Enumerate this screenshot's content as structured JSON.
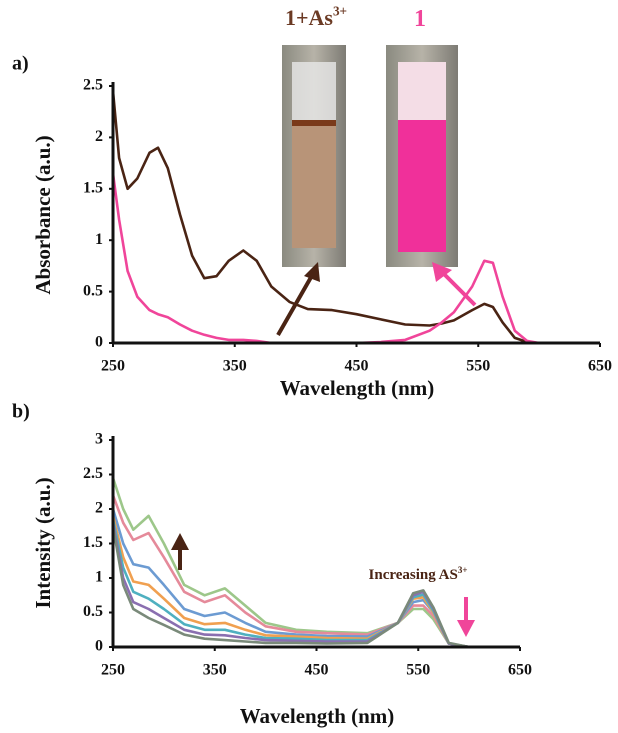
{
  "chart_data": [
    {
      "type": "line",
      "panel": "a)",
      "xlabel": "Wavelength (nm)",
      "ylabel": "Absorbance (a.u.)",
      "annotations": [
        {
          "text": "1+As",
          "sup": "3+",
          "color": "#6b3a24"
        },
        {
          "text": "1",
          "color": "#f0459a"
        }
      ],
      "x": [
        250,
        255,
        262,
        270,
        280,
        287,
        295,
        305,
        315,
        325,
        335,
        345,
        357,
        368,
        380,
        395,
        410,
        430,
        450,
        470,
        490,
        510,
        520,
        530,
        545,
        555,
        562,
        570,
        580,
        590,
        600,
        650
      ],
      "series": [
        {
          "color": "#4a2414",
          "values": [
            2.45,
            1.8,
            1.5,
            1.6,
            1.85,
            1.9,
            1.7,
            1.25,
            0.85,
            0.63,
            0.65,
            0.8,
            0.9,
            0.8,
            0.55,
            0.4,
            0.33,
            0.32,
            0.28,
            0.23,
            0.18,
            0.17,
            0.19,
            0.22,
            0.32,
            0.38,
            0.35,
            0.2,
            0.05,
            0.01,
            0,
            0
          ]
        },
        {
          "color": "#f0459a",
          "values": [
            1.65,
            1.2,
            0.7,
            0.45,
            0.32,
            0.28,
            0.25,
            0.18,
            0.12,
            0.08,
            0.05,
            0.03,
            0.03,
            0.02,
            0,
            0,
            0,
            0,
            0,
            0.01,
            0.03,
            0.12,
            0.2,
            0.3,
            0.55,
            0.8,
            0.78,
            0.45,
            0.12,
            0.02,
            0,
            0
          ]
        }
      ],
      "xlim": [
        250,
        650
      ],
      "xticks": [
        250,
        350,
        450,
        550,
        650
      ],
      "ylim": [
        0,
        2.5
      ],
      "yticks": [
        0,
        0.5,
        1,
        1.5,
        2,
        2.5
      ]
    },
    {
      "type": "line",
      "panel": "b)",
      "xlabel": "Wavelength (nm)",
      "ylabel": "Intensity (a.u.)",
      "annotations": [
        {
          "text": "Increasing AS",
          "sup": "3+",
          "color": "#4a2414"
        }
      ],
      "x": [
        250,
        260,
        270,
        285,
        300,
        320,
        340,
        360,
        380,
        400,
        430,
        460,
        500,
        530,
        545,
        555,
        565,
        580,
        600
      ],
      "series": [
        {
          "color": "#9dc78a",
          "values": [
            2.45,
            2.0,
            1.7,
            1.9,
            1.5,
            0.9,
            0.75,
            0.85,
            0.6,
            0.35,
            0.25,
            0.22,
            0.2,
            0.35,
            0.55,
            0.55,
            0.4,
            0.05,
            0
          ]
        },
        {
          "color": "#e58a9a",
          "values": [
            2.2,
            1.8,
            1.55,
            1.65,
            1.3,
            0.8,
            0.65,
            0.75,
            0.5,
            0.3,
            0.22,
            0.2,
            0.18,
            0.35,
            0.6,
            0.6,
            0.45,
            0.05,
            0
          ]
        },
        {
          "color": "#6c9bd2",
          "values": [
            2.0,
            1.5,
            1.2,
            1.15,
            0.9,
            0.55,
            0.45,
            0.5,
            0.35,
            0.22,
            0.18,
            0.16,
            0.15,
            0.35,
            0.65,
            0.68,
            0.5,
            0.05,
            0
          ]
        },
        {
          "color": "#f0a050",
          "values": [
            1.9,
            1.3,
            0.95,
            0.9,
            0.7,
            0.42,
            0.33,
            0.35,
            0.25,
            0.17,
            0.15,
            0.13,
            0.12,
            0.35,
            0.7,
            0.72,
            0.5,
            0.05,
            0
          ]
        },
        {
          "color": "#4fb0c0",
          "values": [
            1.85,
            1.15,
            0.8,
            0.7,
            0.55,
            0.33,
            0.25,
            0.25,
            0.18,
            0.13,
            0.12,
            0.1,
            0.1,
            0.35,
            0.72,
            0.76,
            0.52,
            0.05,
            0
          ]
        },
        {
          "color": "#8a6fb0",
          "values": [
            1.8,
            1.0,
            0.65,
            0.55,
            0.42,
            0.25,
            0.18,
            0.17,
            0.13,
            0.1,
            0.09,
            0.08,
            0.08,
            0.35,
            0.75,
            0.8,
            0.55,
            0.05,
            0
          ]
        },
        {
          "color": "#7a8a7a",
          "values": [
            1.75,
            0.9,
            0.55,
            0.42,
            0.32,
            0.18,
            0.12,
            0.1,
            0.08,
            0.06,
            0.06,
            0.05,
            0.06,
            0.35,
            0.78,
            0.82,
            0.57,
            0.06,
            0
          ]
        }
      ],
      "xlim": [
        250,
        650
      ],
      "xticks": [
        250,
        350,
        450,
        550,
        650
      ],
      "ylim": [
        0,
        3
      ],
      "yticks": [
        0,
        0.5,
        1,
        1.5,
        2,
        2.5,
        3
      ]
    }
  ]
}
